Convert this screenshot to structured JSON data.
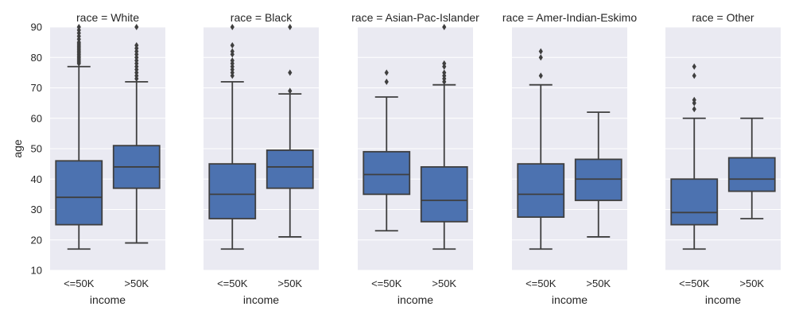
{
  "chart_data": {
    "type": "box",
    "facet_label": "race",
    "xlabel": "income",
    "ylabel": "age",
    "ylim": [
      10,
      90
    ],
    "yticks": [
      10,
      20,
      30,
      40,
      50,
      60,
      70,
      80,
      90
    ],
    "categories": [
      "<=50K",
      ">50K"
    ],
    "grid": true,
    "colors": {
      "box_fill": "#4c72b0",
      "line": "#3f3f3f",
      "panel_bg": "#eaeaf2",
      "grid": "#ffffff"
    },
    "panels": [
      {
        "title": "race =  White",
        "boxes": [
          {
            "category": "<=50K",
            "whisker_low": 17,
            "q1": 25,
            "median": 34,
            "q3": 46,
            "whisker_high": 77,
            "outliers": [
              78,
              78.5,
              79,
              79.5,
              80,
              80.5,
              81,
              81.5,
              82,
              82.5,
              83,
              83.5,
              84,
              84.5,
              85,
              86,
              87,
              88,
              89,
              90
            ]
          },
          {
            "category": ">50K",
            "whisker_low": 19,
            "q1": 37,
            "median": 44,
            "q3": 51,
            "whisker_high": 72,
            "outliers": [
              73,
              74,
              75,
              76,
              77,
              78,
              79,
              80,
              81,
              82,
              83,
              84,
              90
            ]
          }
        ]
      },
      {
        "title": "race =  Black",
        "boxes": [
          {
            "category": "<=50K",
            "whisker_low": 17,
            "q1": 27,
            "median": 35,
            "q3": 45,
            "whisker_high": 72,
            "outliers": [
              74,
              75,
              76,
              77,
              78,
              79,
              81,
              82,
              84,
              90
            ]
          },
          {
            "category": ">50K",
            "whisker_low": 21,
            "q1": 37,
            "median": 44,
            "q3": 49.5,
            "whisker_high": 68,
            "outliers": [
              69,
              75,
              90
            ]
          }
        ]
      },
      {
        "title": "race =  Asian-Pac-Islander",
        "boxes": [
          {
            "category": "<=50K",
            "whisker_low": 23,
            "q1": 35,
            "median": 41.5,
            "q3": 49,
            "whisker_high": 67,
            "outliers": [
              72,
              75
            ]
          },
          {
            "category": ">50K",
            "whisker_low": 17,
            "q1": 26,
            "median": 33,
            "q3": 44,
            "whisker_high": 71,
            "outliers": [
              72,
              73,
              74,
              75,
              77,
              78,
              90
            ]
          }
        ]
      },
      {
        "title": "race =  Amer-Indian-Eskimo",
        "boxes": [
          {
            "category": "<=50K",
            "whisker_low": 17,
            "q1": 27.5,
            "median": 35,
            "q3": 45,
            "whisker_high": 71,
            "outliers": [
              74,
              80,
              82
            ]
          },
          {
            "category": ">50K",
            "whisker_low": 21,
            "q1": 33,
            "median": 40,
            "q3": 46.5,
            "whisker_high": 62,
            "outliers": []
          }
        ]
      },
      {
        "title": "race =  Other",
        "boxes": [
          {
            "category": "<=50K",
            "whisker_low": 17,
            "q1": 25,
            "median": 29,
            "q3": 40,
            "whisker_high": 60,
            "outliers": [
              63,
              65,
              66,
              74,
              77
            ]
          },
          {
            "category": ">50K",
            "whisker_low": 27,
            "q1": 36,
            "median": 40,
            "q3": 47,
            "whisker_high": 60,
            "outliers": []
          }
        ]
      }
    ]
  }
}
